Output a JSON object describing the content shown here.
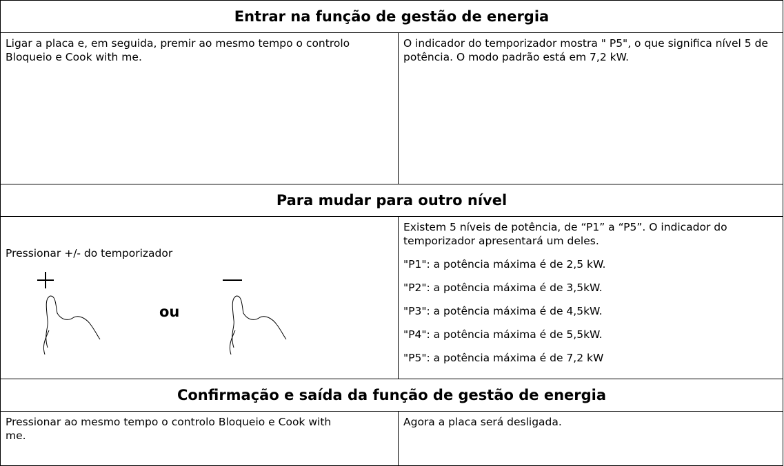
{
  "sections": [
    {
      "title": "Entrar na função de gestão de energia",
      "left": "Ligar a placa e, em seguida, premir ao mesmo tempo o controlo Bloqueio e Cook with me.",
      "right": [
        "O indicador do temporizador mostra \" P5\", o que significa nível 5 de potência. O modo padrão está em 7,2 kW."
      ]
    },
    {
      "title": "Para mudar para outro nível",
      "left": "Pressionar +/- do temporizador",
      "separator": "ou",
      "right": [
        "Existem 5 níveis de potência, de “P1” a “P5”. O indicador do temporizador apresentará um deles.",
        "\"P1\": a potência máxima é de 2,5 kW.",
        "\"P2\": a potência máxima é de 3,5kW.",
        "\"P3\": a potência máxima é de 4,5kW.",
        "\"P4\": a potência máxima é de 5,5kW.",
        "\"P5\": a potência máxima é de 7,2 kW"
      ]
    },
    {
      "title": "Confirmação e saída da função de gestão de energia",
      "left": "Pressionar ao mesmo tempo o controlo Bloqueio e Cook with me.",
      "right": [
        "Agora a placa será desligada."
      ]
    }
  ]
}
